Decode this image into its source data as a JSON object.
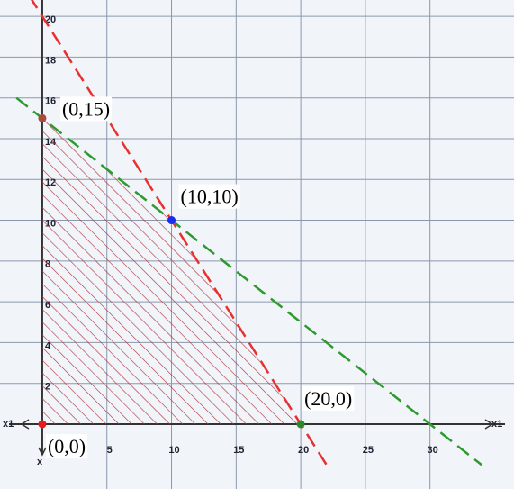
{
  "chart_data": {
    "type": "feasible-region",
    "x_axis_label": "x1",
    "y_axis_label": "x",
    "xlim": [
      -3.27,
      36.5
    ],
    "ylim": [
      -3.18,
      20.8
    ],
    "xticks": [
      5,
      10,
      15,
      20,
      25,
      30
    ],
    "yticks": [
      2,
      4,
      6,
      8,
      10,
      12,
      14,
      16,
      18,
      20
    ],
    "grid": true,
    "series": [
      {
        "color": "#e8312f",
        "x": [
          -1,
          22
        ],
        "values": [
          21,
          -2
        ]
      },
      {
        "color": "#2e9a2e",
        "x": [
          -2,
          34
        ],
        "values": [
          16,
          -2
        ]
      }
    ],
    "region": {
      "color": "#b03a3a",
      "x": [
        0,
        0,
        10,
        20
      ],
      "values": [
        0,
        15,
        10,
        0
      ]
    },
    "points": [
      {
        "label": "(0,15)",
        "x": 0,
        "y": 15,
        "color": "#a84a3c"
      },
      {
        "label": "(10,10)",
        "x": 10,
        "y": 10,
        "color": "#1a2cf0"
      },
      {
        "label": "(20,0)",
        "x": 20,
        "y": 0,
        "color": "#2a8a2a"
      },
      {
        "label": "(0,0)",
        "x": 0,
        "y": 0,
        "color": "#e81a1a"
      }
    ]
  }
}
